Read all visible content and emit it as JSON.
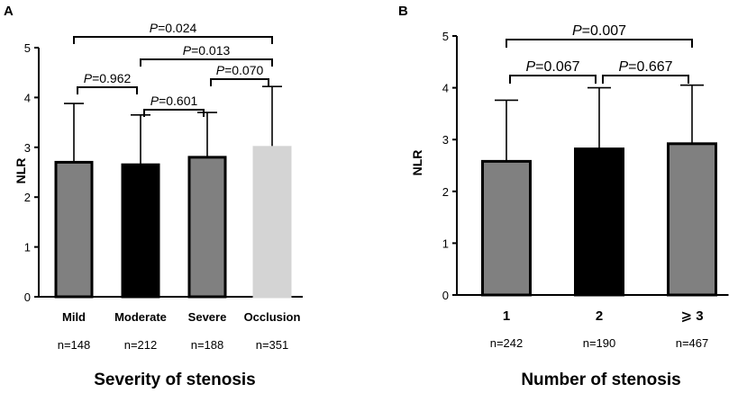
{
  "chart_data": [
    {
      "type": "bar",
      "panel": "A",
      "title": "",
      "xlabel": "Severity of stenosis",
      "ylabel": "NLR",
      "ylim": [
        0,
        5
      ],
      "yticks": [
        "0",
        "1",
        "2",
        "3",
        "4",
        "5"
      ],
      "categories": [
        "Mild",
        "Moderate",
        "Severe",
        "Occlusion"
      ],
      "n_labels": [
        "n=148",
        "n=212",
        "n=188",
        "n=351"
      ],
      "values": [
        2.7,
        2.65,
        2.8,
        3.0
      ],
      "error_upper": [
        3.88,
        3.65,
        3.7,
        4.22
      ],
      "bar_colors": [
        "#808080",
        "#000000",
        "#808080",
        "#d4d4d4"
      ],
      "comparisons": [
        {
          "from": 0,
          "to": 1,
          "p_label": "P",
          "p_value": "=0.962"
        },
        {
          "from": 1,
          "to": 2,
          "p_label": "P",
          "p_value": "=0.601"
        },
        {
          "from": 2,
          "to": 3,
          "p_label": "P",
          "p_value": "=0.070"
        },
        {
          "from": 1,
          "to": 3,
          "p_label": "P",
          "p_value": "=0.013"
        },
        {
          "from": 0,
          "to": 3,
          "p_label": "P",
          "p_value": "=0.024"
        }
      ],
      "grid": false
    },
    {
      "type": "bar",
      "panel": "B",
      "title": "",
      "xlabel": "Number of stenosis",
      "ylabel": "NLR",
      "ylim": [
        0,
        5
      ],
      "yticks": [
        "0",
        "1",
        "2",
        "3",
        "4",
        "5"
      ],
      "categories": [
        "1",
        "2",
        "⩾ 3"
      ],
      "n_labels": [
        "n=242",
        "n=190",
        "n=467"
      ],
      "values": [
        2.58,
        2.82,
        2.92
      ],
      "error_upper": [
        3.76,
        4.0,
        4.05
      ],
      "bar_colors": [
        "#808080",
        "#000000",
        "#808080"
      ],
      "comparisons": [
        {
          "from": 0,
          "to": 1,
          "p_label": "P",
          "p_value": "=0.067"
        },
        {
          "from": 1,
          "to": 2,
          "p_label": "P",
          "p_value": "=0.667"
        },
        {
          "from": 0,
          "to": 2,
          "p_label": "P",
          "p_value": "=0.007"
        }
      ],
      "grid": false
    }
  ]
}
